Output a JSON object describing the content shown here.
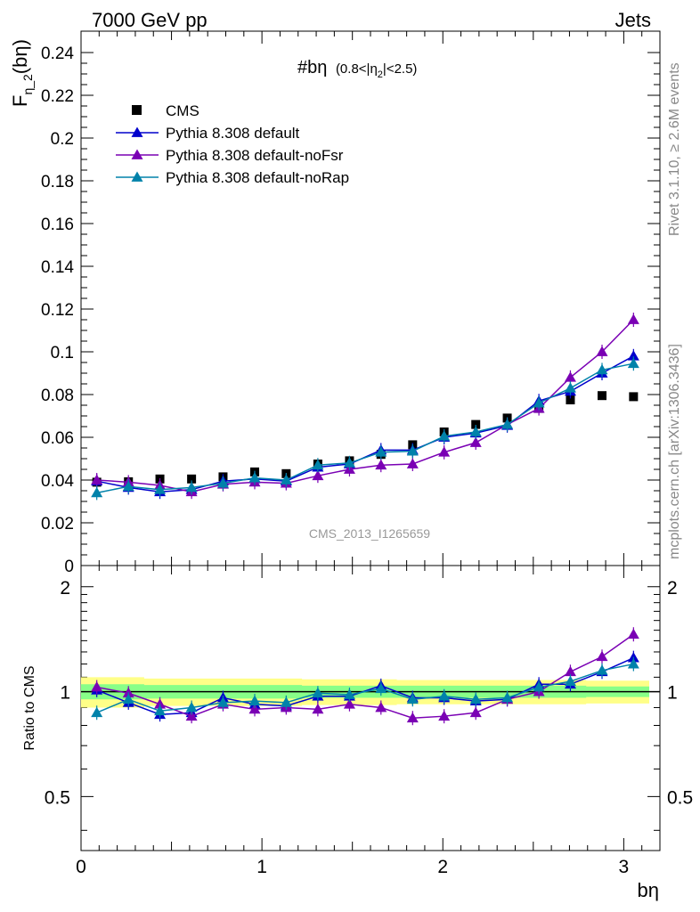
{
  "header": {
    "left": "7000 GeV pp",
    "right": "Jets"
  },
  "title": {
    "main": "#bη",
    "sub": "(0.8<|η",
    "sub_index": "2",
    "sub_end": "|<2.5)"
  },
  "ylabel": {
    "main": "F",
    "sub": "η_2",
    "paren": "(bη)"
  },
  "ratio_ylabel": "Ratio to CMS",
  "xlabel": "bη",
  "watermark": "CMS_2013_I1265659",
  "side_top": "Rivet 3.1.10, ≥ 2.6M events",
  "side_bottom": "mcplots.cern.ch [arXiv:1306.3436]",
  "colors": {
    "cms": "#000000",
    "default": "#0000cc",
    "noFsr": "#7a00b4",
    "noRap": "#0082aa",
    "band_inner": "#88ff88",
    "band_outer": "#ffff88"
  },
  "chart_data": {
    "type": "scatter",
    "x": [
      0.087,
      0.262,
      0.436,
      0.611,
      0.785,
      0.96,
      1.134,
      1.309,
      1.484,
      1.658,
      1.833,
      2.007,
      2.182,
      2.356,
      2.531,
      2.705,
      2.88,
      3.054
    ],
    "xlim": [
      0,
      3.2
    ],
    "xticks": [
      "0",
      "1",
      "2",
      "3"
    ],
    "main": {
      "ylim": [
        0,
        0.25
      ],
      "yticks": [
        "0",
        "0.02",
        "0.04",
        "0.06",
        "0.08",
        "0.1",
        "0.12",
        "0.14",
        "0.16",
        "0.18",
        "0.2",
        "0.22",
        "0.24"
      ],
      "series": [
        {
          "name": "CMS",
          "color": "#000000",
          "marker": "square",
          "values": [
            0.039,
            0.0392,
            0.0405,
            0.0405,
            0.0415,
            0.0438,
            0.043,
            0.0475,
            0.049,
            0.052,
            0.0565,
            0.0625,
            0.066,
            0.069,
            0.0735,
            0.0775,
            0.0795,
            0.079
          ]
        },
        {
          "name": "Pythia 8.308 default",
          "color": "#0000cc",
          "marker": "triangle",
          "values": [
            0.0395,
            0.0365,
            0.0345,
            0.0355,
            0.0395,
            0.0405,
            0.0395,
            0.046,
            0.0475,
            0.054,
            0.054,
            0.06,
            0.062,
            0.0655,
            0.077,
            0.0815,
            0.09,
            0.098
          ]
        },
        {
          "name": "Pythia 8.308 default-noFsr",
          "color": "#7a00b4",
          "marker": "triangle",
          "values": [
            0.04,
            0.039,
            0.0375,
            0.0345,
            0.038,
            0.039,
            0.0385,
            0.042,
            0.045,
            0.047,
            0.0475,
            0.053,
            0.0575,
            0.066,
            0.0735,
            0.088,
            0.1,
            0.115
          ]
        },
        {
          "name": "Pythia 8.308 default-noRap",
          "color": "#0082aa",
          "marker": "triangle",
          "values": [
            0.034,
            0.037,
            0.0355,
            0.0365,
            0.0385,
            0.041,
            0.04,
            0.047,
            0.048,
            0.053,
            0.0535,
            0.0605,
            0.0625,
            0.066,
            0.076,
            0.083,
            0.0915,
            0.0945
          ]
        }
      ]
    },
    "ratio": {
      "ylim": [
        0.35,
        2.3
      ],
      "log": true,
      "yticks": [
        "0.5",
        "1",
        "2"
      ],
      "band_inner": [
        0.05,
        0.05,
        0.045,
        0.045,
        0.045,
        0.045,
        0.045,
        0.04,
        0.04,
        0.04,
        0.04,
        0.04,
        0.04,
        0.04,
        0.04,
        0.04,
        0.035,
        0.035
      ],
      "band_outer": [
        0.1,
        0.1,
        0.09,
        0.09,
        0.09,
        0.09,
        0.09,
        0.085,
        0.085,
        0.085,
        0.08,
        0.08,
        0.08,
        0.08,
        0.08,
        0.08,
        0.075,
        0.075
      ],
      "series": [
        {
          "name": "Pythia 8.308 default",
          "color": "#0000cc",
          "values": [
            1.01,
            0.93,
            0.86,
            0.87,
            0.96,
            0.92,
            0.91,
            0.97,
            0.97,
            1.04,
            0.96,
            0.96,
            0.94,
            0.95,
            1.05,
            1.05,
            1.14,
            1.25
          ]
        },
        {
          "name": "Pythia 8.308 default-noFsr",
          "color": "#7a00b4",
          "values": [
            1.03,
            0.99,
            0.92,
            0.85,
            0.92,
            0.89,
            0.9,
            0.89,
            0.92,
            0.9,
            0.84,
            0.85,
            0.87,
            0.95,
            1.0,
            1.14,
            1.26,
            1.46
          ]
        },
        {
          "name": "Pythia 8.308 default-noRap",
          "color": "#0082aa",
          "values": [
            0.87,
            0.95,
            0.88,
            0.9,
            0.93,
            0.94,
            0.93,
            0.99,
            0.98,
            1.02,
            0.95,
            0.97,
            0.95,
            0.96,
            1.03,
            1.07,
            1.15,
            1.2
          ]
        }
      ]
    }
  }
}
